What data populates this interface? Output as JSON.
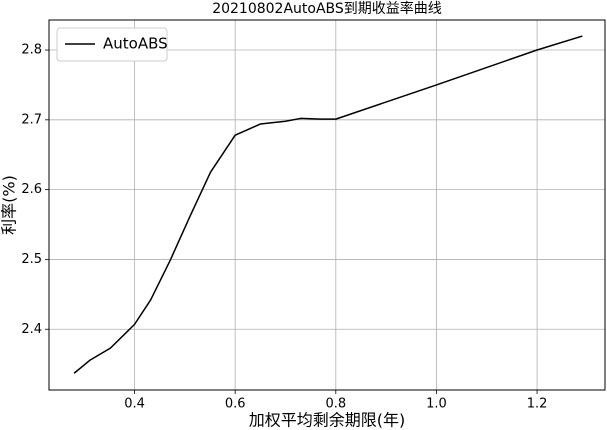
{
  "chart_data": {
    "type": "line",
    "title": "20210802AutoABS到期收益率曲线",
    "x_label": "加权平均剩余期限(年)",
    "y_label": "利率(%)",
    "x": [
      0.28,
      0.312,
      0.352,
      0.4,
      0.432,
      0.471,
      0.511,
      0.551,
      0.6,
      0.65,
      0.7,
      0.73,
      0.77,
      0.8,
      1.0,
      1.2,
      1.29
    ],
    "series": [
      {
        "name": "AutoABS",
        "color": "#000000",
        "values": [
          2.337,
          2.356,
          2.373,
          2.407,
          2.442,
          2.499,
          2.563,
          2.625,
          2.678,
          2.694,
          2.698,
          2.702,
          2.701,
          2.701,
          2.75,
          2.8,
          2.82
        ]
      }
    ],
    "xlim": [
      0.23,
      1.335
    ],
    "ylim": [
      2.313,
      2.843
    ],
    "xticks": [
      {
        "value": 0.4,
        "label": "0.4"
      },
      {
        "value": 0.6,
        "label": "0.6"
      },
      {
        "value": 0.8,
        "label": "0.8"
      },
      {
        "value": 1.0,
        "label": "1.0"
      },
      {
        "value": 1.2,
        "label": "1.2"
      }
    ],
    "yticks": [
      2.4,
      2.5,
      2.6,
      2.7,
      2.8
    ],
    "grid": true,
    "legend": "upper-left"
  }
}
